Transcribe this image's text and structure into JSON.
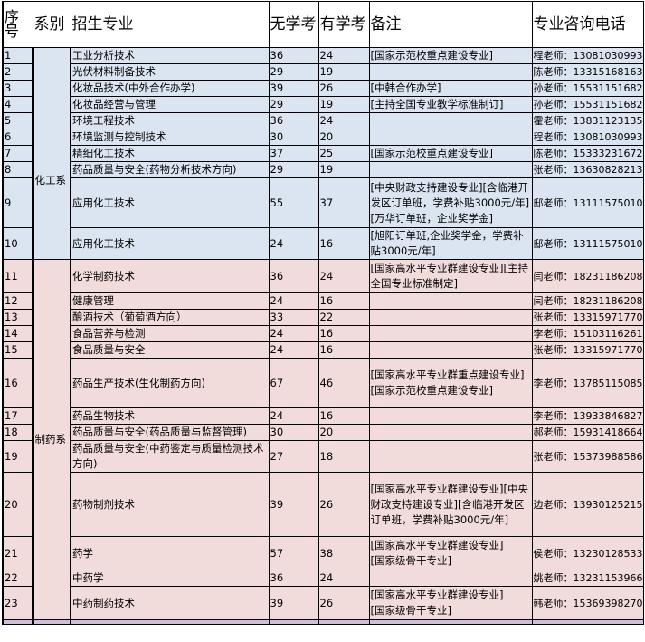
{
  "headers": {
    "no": "序号",
    "dept": "系别",
    "major": "招生专业",
    "no_exam": "无学考",
    "exam": "有学考",
    "note": "备注",
    "phone": "专业咨询电话"
  },
  "colors": {
    "chem": "#dbe5f1",
    "pharma": "#f2dcdb",
    "next": "#ccc0da"
  },
  "departments": [
    {
      "name": "化工系",
      "rows": 10
    },
    {
      "name": "制药系",
      "rows": 13
    }
  ],
  "rows": [
    {
      "no": "1",
      "major": "工业分析技术",
      "a": "36",
      "b": "24",
      "note": "[国家示范校重点建设专业]",
      "phone": "程老师：13081030993"
    },
    {
      "no": "2",
      "major": "光伏材料制备技术",
      "a": "29",
      "b": "19",
      "note": "",
      "phone": "陈老师：13315168163"
    },
    {
      "no": "3",
      "major": "化妆品技术(中外合作办学)",
      "a": "39",
      "b": "26",
      "note": "[中韩合作办学]",
      "phone": "孙老师：15531151682"
    },
    {
      "no": "4",
      "major": "化妆品经营与管理",
      "a": "29",
      "b": "19",
      "note": "[主持全国专业教学标准制订]",
      "phone": "孙老师：15531151682"
    },
    {
      "no": "5",
      "major": "环境工程技术",
      "a": "36",
      "b": "24",
      "note": "",
      "phone": "霍老师：13831123135"
    },
    {
      "no": "6",
      "major": "环境监测与控制技术",
      "a": "30",
      "b": "20",
      "note": "",
      "phone": "程老师：13081030993"
    },
    {
      "no": "7",
      "major": "精细化工技术",
      "a": "37",
      "b": "25",
      "note": "[国家示范校重点建设专业]",
      "phone": "陈老师：15333231672"
    },
    {
      "no": "8",
      "major": "药品质量与安全(药物分析技术方向)",
      "a": "29",
      "b": "19",
      "note": "",
      "phone": "张老师：13630828213"
    },
    {
      "no": "9",
      "major": "应用化工技术",
      "a": "55",
      "b": "37",
      "note": "[中央财政支持建设专业][含临港开发区订单班，学费补贴3000元/年][万华订单班，企业奖学金]",
      "phone": "邸老师：13111575010"
    },
    {
      "no": "10",
      "major": "应用化工技术",
      "a": "24",
      "b": "16",
      "note": "[旭阳订单班,企业奖学金，学费补贴3000元/年]",
      "phone": "邸老师：13111575010"
    },
    {
      "no": "11",
      "major": "化学制药技术",
      "a": "36",
      "b": "24",
      "note": "[国家高水平专业群建设专业][主持全国专业标准制定]",
      "phone": "闫老师：18231186208"
    },
    {
      "no": "12",
      "major": "健康管理",
      "a": "24",
      "b": "16",
      "note": "",
      "phone": "闫老师：18231186208"
    },
    {
      "no": "13",
      "major": "酿酒技术（葡萄酒方向）",
      "a": "33",
      "b": "22",
      "note": "",
      "phone": "张老师：13315971770"
    },
    {
      "no": "14",
      "major": "食品营养与检测",
      "a": "24",
      "b": "16",
      "note": "",
      "phone": "李老师：15103116261"
    },
    {
      "no": "15",
      "major": "食品质量与安全",
      "a": "24",
      "b": "16",
      "note": "",
      "phone": "张老师：13315971770"
    },
    {
      "no": "16",
      "major": "药品生产技术(生化制药方向)",
      "a": "67",
      "b": "46",
      "note": "[国家高水平专业群重点建设专业]\n[国家示范校重点建设专业]",
      "phone": "李老师：13785115085"
    },
    {
      "no": "17",
      "major": "药品生物技术",
      "a": "24",
      "b": "16",
      "note": "",
      "phone": "李老师：13933846827"
    },
    {
      "no": "18",
      "major": "药品质量与安全(药品质量与监督管理)",
      "a": "30",
      "b": "20",
      "note": "",
      "phone": "郝老师：15931418664"
    },
    {
      "no": "19",
      "major": "药品质量与安全(中药鉴定与质量检测技术方向)",
      "a": "27",
      "b": "18",
      "note": "",
      "phone": "张老师：15373988586"
    },
    {
      "no": "20",
      "major": "药物制剂技术",
      "a": "39",
      "b": "26",
      "note": "[国家高水平专业群建设专业][中央财政支持建设专业][含临港开发区订单班，学费补贴3000元/年]",
      "phone": "边老师：13930125215"
    },
    {
      "no": "21",
      "major": "药学",
      "a": "57",
      "b": "38",
      "note": "[国家高水平专业群建设专业]\n[国家级骨干专业]",
      "phone": "侯老师：13230128533"
    },
    {
      "no": "22",
      "major": "中药学",
      "a": "36",
      "b": "24",
      "note": "",
      "phone": "姚老师：13231153966"
    },
    {
      "no": "23",
      "major": "中药制药技术",
      "a": "39",
      "b": "26",
      "note": "[国家高水平专业群建设专业]\n[国家级骨干专业]",
      "phone": "韩老师：15369398270"
    }
  ]
}
